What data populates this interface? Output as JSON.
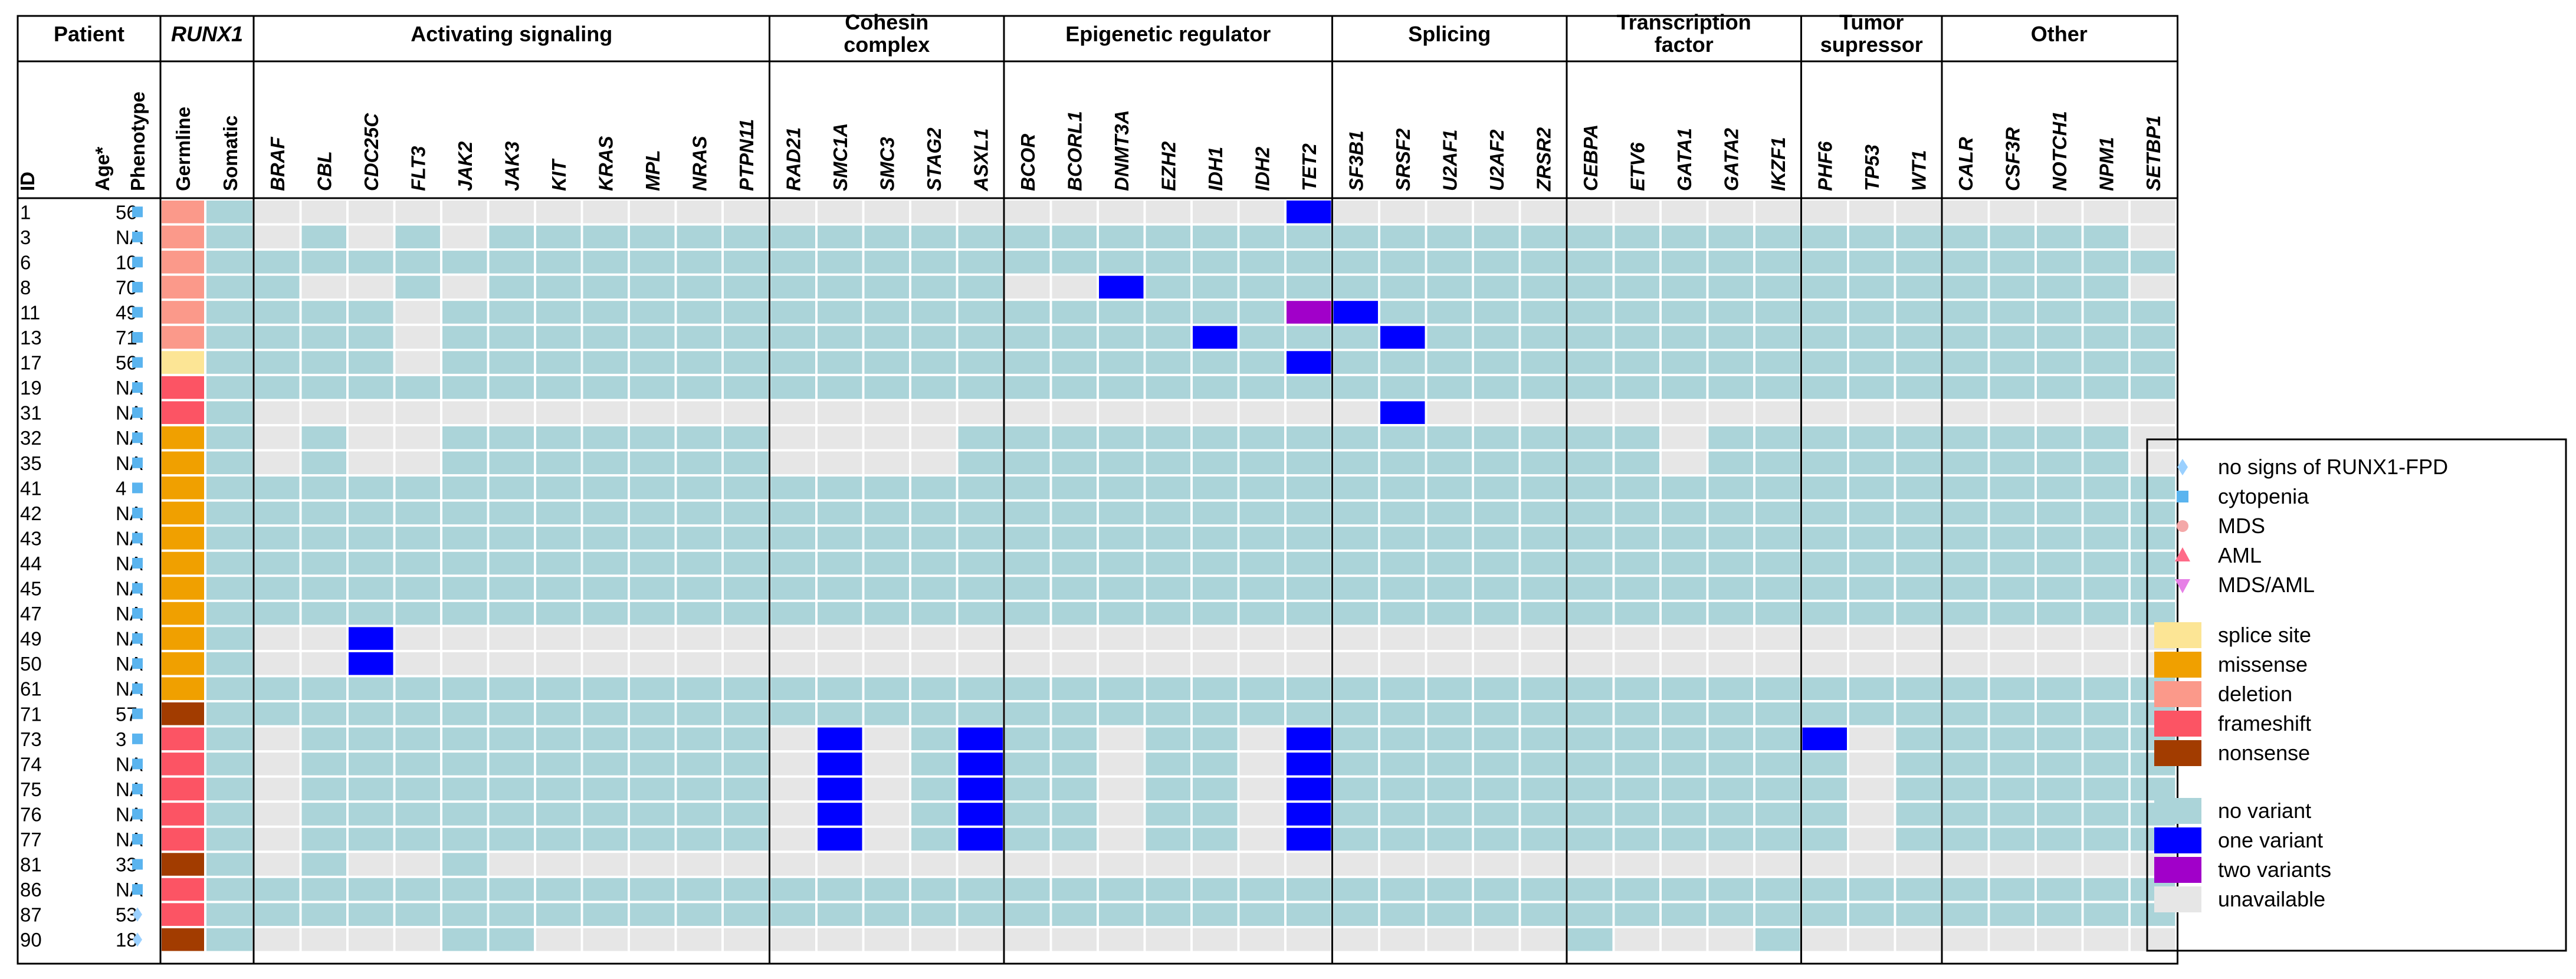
{
  "colors": {
    "no_variant": "#abd4d9",
    "one_variant": "#0000ff",
    "two_variants": "#a100c9",
    "unavailable": "#e6e6e6",
    "splice_site": "#fce595",
    "missense": "#f0a000",
    "deletion": "#fb998a",
    "frameshift": "#fc5464",
    "nonsense": "#a23c00",
    "symbol_no_signs": "#9ad0ff",
    "symbol_cytopenia": "#5ab4ef",
    "symbol_mds": "#f4a8a8",
    "symbol_aml": "#ff6b88",
    "symbol_mds_aml": "#e680e6"
  },
  "chart_data": {
    "type": "heatmap",
    "title": "",
    "patient_header": "Patient",
    "runx1_header": "RUNX1",
    "column_labels": {
      "id": "ID",
      "age": "Age*",
      "phenotype": "Phenotype",
      "germline": "Germline",
      "somatic": "Somatic"
    },
    "groups": [
      {
        "name": "Activating signaling",
        "genes": [
          "BRAF",
          "CBL",
          "CDC25C",
          "FLT3",
          "JAK2",
          "JAK3",
          "KIT",
          "KRAS",
          "MPL",
          "NRAS",
          "PTPN11"
        ]
      },
      {
        "name": "Cohesin complex",
        "genes": [
          "RAD21",
          "SMC1A",
          "SMC3",
          "STAG2",
          "ASXL1"
        ]
      },
      {
        "name": "Epigenetic regulator",
        "genes": [
          "BCOR",
          "BCORL1",
          "DNMT3A",
          "EZH2",
          "IDH1",
          "IDH2",
          "TET2"
        ]
      },
      {
        "name": "Splicing",
        "genes": [
          "SF3B1",
          "SRSF2",
          "U2AF1",
          "U2AF2",
          "ZRSR2"
        ]
      },
      {
        "name": "Transcription factor",
        "genes": [
          "CEBPA",
          "ETV6",
          "GATA1",
          "GATA2",
          "IKZF1"
        ]
      },
      {
        "name": "Tumor supressor",
        "genes": [
          "PHF6",
          "TP53",
          "WT1"
        ]
      },
      {
        "name": "Other",
        "genes": [
          "CALR",
          "CSF3R",
          "NOTCH1",
          "NPM1",
          "SETBP1"
        ]
      }
    ],
    "cell_code": {
      "u": "unavailable",
      "n": "no variant",
      "1": "one variant",
      "2": "two variants"
    },
    "patients": [
      {
        "id": "1",
        "age": "56",
        "phenotype": "cytopenia",
        "germline": "deletion",
        "cells": "uuuuuuuuuuuuuuuuuuuuuu1uuuuuuuuuuuuuuuuuu"
      },
      {
        "id": "3",
        "age": "NA",
        "phenotype": "cytopenia",
        "germline": "deletion",
        "cells": "unununnnnnnnnnnnnnnnnnnnnnnnnnnnnnnnnnnnu"
      },
      {
        "id": "6",
        "age": "10",
        "phenotype": "cytopenia",
        "germline": "deletion",
        "cells": "nnnnnnnnnnnnnnnnnnnnnnnnnnnnnnnnnnnnnnnnn"
      },
      {
        "id": "8",
        "age": "70",
        "phenotype": "cytopenia",
        "germline": "deletion",
        "cells": "nuununnnnnnnnnnnuu1nnnnnnnnnnnnnnnnnnnnnu"
      },
      {
        "id": "11",
        "age": "49",
        "phenotype": "cytopenia",
        "germline": "deletion",
        "cells": "nnnunnnnnnnnnnnnnnnnnn21nnnnnnnnnnnnnnnnn"
      },
      {
        "id": "13",
        "age": "71",
        "phenotype": "cytopenia",
        "germline": "deletion",
        "cells": "nnnunnnnnnnnnnnnnnnn1nnn1nnnnnnnnnnnnnnnn"
      },
      {
        "id": "17",
        "age": "56",
        "phenotype": "cytopenia",
        "germline": "splice site",
        "cells": "nnnunnnnnnnnnnnnnnnnnn1nnnnnnnnnnnnnnnnnn"
      },
      {
        "id": "19",
        "age": "NA",
        "phenotype": "cytopenia",
        "germline": "frameshift",
        "cells": "nnnnnnnnnnnnnnnnnnnnnnnnnnnnnnnnnnnnnnnnn"
      },
      {
        "id": "31",
        "age": "NA",
        "phenotype": "cytopenia",
        "germline": "frameshift",
        "cells": "uuuuuuuuuuuuuuuuuuuuuuuu1uuuuuuuuuuuuuuuu"
      },
      {
        "id": "32",
        "age": "NA",
        "phenotype": "cytopenia",
        "germline": "missense",
        "cells": "unuunnnnnnnuuuunnnnnnnnnnnnnnnunnnnnnnnnu"
      },
      {
        "id": "35",
        "age": "NA",
        "phenotype": "cytopenia",
        "germline": "missense",
        "cells": "unuunnnnnnnuuuunnnnnnnnnnnnnnnunnnnnnnnnu"
      },
      {
        "id": "41",
        "age": "4",
        "phenotype": "cytopenia",
        "germline": "missense",
        "cells": "nnnnnnnnnnnnnnnnnnnnnnnnnnnnnnnnnnnnnnnnn"
      },
      {
        "id": "42",
        "age": "NA",
        "phenotype": "cytopenia",
        "germline": "missense",
        "cells": "nnnnnnnnnnnnnnnnnnnnnnnnnnnnnnnnnnnnnnnnn"
      },
      {
        "id": "43",
        "age": "NA",
        "phenotype": "cytopenia",
        "germline": "missense",
        "cells": "nnnnnnnnnnnnnnnnnnnnnnnnnnnnnnnnnnnnnnnnn"
      },
      {
        "id": "44",
        "age": "NA",
        "phenotype": "cytopenia",
        "germline": "missense",
        "cells": "nnnnnnnnnnnnnnnnnnnnnnnnnnnnnnnnnnnnnnnnn"
      },
      {
        "id": "45",
        "age": "NA",
        "phenotype": "cytopenia",
        "germline": "missense",
        "cells": "nnnnnnnnnnnnnnnnnnnnnnnnnnnnnnnnnnnnnnnnn"
      },
      {
        "id": "47",
        "age": "NA",
        "phenotype": "cytopenia",
        "germline": "missense",
        "cells": "nnnnnnnnnnnnnnnnnnnnnnnnnnnnnnnnnnnnnnnnn"
      },
      {
        "id": "49",
        "age": "NA",
        "phenotype": "cytopenia",
        "germline": "missense",
        "cells": "uu1uuuuuuuuuuuuuuuuuuuuuuuuuuuuuuuuuuuuuu"
      },
      {
        "id": "50",
        "age": "NA",
        "phenotype": "cytopenia",
        "germline": "missense",
        "cells": "uu1uuuuuuuuuuuuuuuuuuuuuuuuuuuuuuuuuuuuuu"
      },
      {
        "id": "61",
        "age": "NA",
        "phenotype": "cytopenia",
        "germline": "missense",
        "cells": "nnnnnnnnnnnnnnnnnnnnnnnnnnnnnnnnnnnnnnnnn"
      },
      {
        "id": "71",
        "age": "57",
        "phenotype": "cytopenia",
        "germline": "nonsense",
        "cells": "nnnnnnnnnnnnnnnnnnnnnnnnnnnnnnnnnnnnnnnnn"
      },
      {
        "id": "73",
        "age": "3",
        "phenotype": "cytopenia",
        "germline": "frameshift",
        "cells": "unnnnnnnnnnu1un1nnunnu1nnnnnnnnnn1unnnnnn"
      },
      {
        "id": "74",
        "age": "NA",
        "phenotype": "cytopenia",
        "germline": "frameshift",
        "cells": "unnnnnnnnnnu1un1nnunnu1nnnnnnnnnnnunnnnnn"
      },
      {
        "id": "75",
        "age": "NA",
        "phenotype": "cytopenia",
        "germline": "frameshift",
        "cells": "unnnnnnnnnnu1un1nnunnu1nnnnnnnnnnnunnnnnn"
      },
      {
        "id": "76",
        "age": "NA",
        "phenotype": "cytopenia",
        "germline": "frameshift",
        "cells": "unnnnnnnnnnu1un1nnunnu1nnnnnnnnnnnunnnnnn"
      },
      {
        "id": "77",
        "age": "NA",
        "phenotype": "cytopenia",
        "germline": "frameshift",
        "cells": "unnnnnnnnnnu1un1nnunnu1nnnnnnnnnnnunnnnnn"
      },
      {
        "id": "81",
        "age": "33",
        "phenotype": "cytopenia",
        "germline": "nonsense",
        "cells": "unuunuuuuuuuuuuuuuuuuuuuuuuuuuuuuuuuuuuuu"
      },
      {
        "id": "86",
        "age": "NA",
        "phenotype": "cytopenia",
        "germline": "frameshift",
        "cells": "nnnnnnnnnnnnnnnnnnnnnnnnnnnnnnnnnnnnnnnnn"
      },
      {
        "id": "87",
        "age": "53",
        "phenotype": "no signs of RUNX1-FPD",
        "germline": "frameshift",
        "cells": "nnnnnnnnnnnnnnnnnnnnnnnnnnnnnnnnnnnnnnnnn"
      },
      {
        "id": "90",
        "age": "18",
        "phenotype": "no signs of RUNX1-FPD",
        "germline": "nonsense",
        "cells": "uuuunnuuuuuuuuuuuuuuuuuuuuuunuuunuuuuuuuu"
      }
    ],
    "legend": {
      "phenotype": [
        {
          "label": "no signs of RUNX1-FPD",
          "shape": "diamond",
          "color_key": "symbol_no_signs"
        },
        {
          "label": "cytopenia",
          "shape": "square",
          "color_key": "symbol_cytopenia"
        },
        {
          "label": "MDS",
          "shape": "circle",
          "color_key": "symbol_mds"
        },
        {
          "label": "AML",
          "shape": "triangle-up",
          "color_key": "symbol_aml"
        },
        {
          "label": "MDS/AML",
          "shape": "triangle-down",
          "color_key": "symbol_mds_aml"
        }
      ],
      "germline": [
        {
          "label": "splice site",
          "color_key": "splice_site"
        },
        {
          "label": "missense",
          "color_key": "missense"
        },
        {
          "label": "deletion",
          "color_key": "deletion"
        },
        {
          "label": "frameshift",
          "color_key": "frameshift"
        },
        {
          "label": "nonsense",
          "color_key": "nonsense"
        }
      ],
      "variants": [
        {
          "label": "no variant",
          "color_key": "no_variant"
        },
        {
          "label": "one variant",
          "color_key": "one_variant"
        },
        {
          "label": "two variants",
          "color_key": "two_variants"
        },
        {
          "label": "unavailable",
          "color_key": "unavailable"
        }
      ]
    }
  }
}
